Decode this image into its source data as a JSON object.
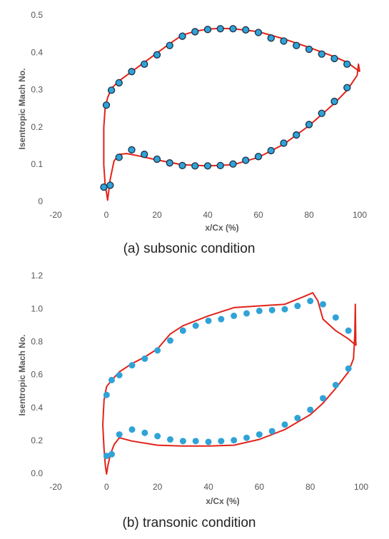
{
  "chart_data": [
    {
      "type": "scatter-line",
      "caption": "(a) subsonic condition",
      "xlabel": "x/Cx (%)",
      "ylabel": "Isentropic Mach No.",
      "xlim": [
        -20,
        100
      ],
      "xticks": [
        -20,
        0,
        20,
        40,
        60,
        80,
        100
      ],
      "ylim": [
        0,
        0.5
      ],
      "yticks": [
        0,
        0.1,
        0.2,
        0.3,
        0.4,
        0.5
      ],
      "series": [
        {
          "kind": "line",
          "color": "#e2231a",
          "x": [
            100,
            95,
            90,
            80,
            70,
            60,
            50,
            45,
            40,
            35,
            30,
            25,
            20,
            15,
            10,
            5,
            2,
            0.5,
            -0.5,
            -1,
            -1,
            -0.5,
            0.5,
            1.5,
            3,
            5,
            8,
            12,
            20,
            30,
            40,
            50,
            60,
            70,
            80,
            90,
            95,
            98,
            99,
            99.5,
            100
          ],
          "values": [
            0.35,
            0.375,
            0.39,
            0.415,
            0.438,
            0.457,
            0.465,
            0.466,
            0.464,
            0.458,
            0.448,
            0.425,
            0.4,
            0.375,
            0.35,
            0.325,
            0.305,
            0.28,
            0.25,
            0.2,
            0.1,
            0.05,
            0.005,
            0.06,
            0.11,
            0.128,
            0.13,
            0.125,
            0.113,
            0.1,
            0.097,
            0.1,
            0.12,
            0.155,
            0.205,
            0.265,
            0.3,
            0.33,
            0.34,
            0.37,
            0.35
          ]
        },
        {
          "kind": "scatter",
          "color": "#2fa3d8",
          "stroke": "#1b2f45",
          "x": [
            0,
            2,
            5,
            10,
            15,
            20,
            25,
            30,
            35,
            40,
            45,
            50,
            55,
            60,
            65,
            70,
            75,
            80,
            85,
            90,
            95,
            -1,
            1.5,
            5,
            10,
            15,
            20,
            25,
            30,
            35,
            40,
            45,
            50,
            55,
            60,
            65,
            70,
            75,
            80,
            85,
            90,
            95
          ],
          "values": [
            0.26,
            0.3,
            0.32,
            0.35,
            0.37,
            0.395,
            0.42,
            0.445,
            0.457,
            0.463,
            0.465,
            0.465,
            0.462,
            0.455,
            0.44,
            0.432,
            0.42,
            0.41,
            0.397,
            0.385,
            0.37,
            0.04,
            0.045,
            0.12,
            0.14,
            0.128,
            0.115,
            0.105,
            0.098,
            0.097,
            0.097,
            0.098,
            0.102,
            0.112,
            0.122,
            0.138,
            0.158,
            0.18,
            0.208,
            0.238,
            0.27,
            0.307
          ]
        }
      ]
    },
    {
      "type": "scatter-line",
      "caption": "(b) transonic condition",
      "xlabel": "x/Cx (%)",
      "ylabel": "Isentropic Mach No.",
      "xlim": [
        -20,
        100
      ],
      "xticks": [
        -20,
        0,
        20,
        40,
        60,
        80,
        100
      ],
      "ylim": [
        0,
        1.2
      ],
      "yticks": [
        {
          "value": 0,
          "label": "0.0"
        },
        0.2,
        0.4,
        0.6,
        0.8,
        {
          "value": 1,
          "label": "1.0"
        },
        1.2
      ],
      "series": [
        {
          "kind": "line",
          "color": "#e2231a",
          "x": [
            98,
            95,
            90,
            85,
            83,
            81,
            78,
            70,
            60,
            50,
            40,
            30,
            25,
            20,
            15,
            10,
            5,
            2,
            0,
            -1,
            -1.5,
            -1,
            -0.5,
            0,
            0.5,
            1.5,
            3,
            5,
            10,
            20,
            30,
            40,
            50,
            60,
            70,
            80,
            85,
            90,
            95,
            97,
            97.5,
            97.7,
            97.9,
            98
          ],
          "values": [
            0.78,
            0.82,
            0.87,
            0.94,
            1.05,
            1.1,
            1.08,
            1.03,
            1.02,
            1.01,
            0.96,
            0.9,
            0.85,
            0.76,
            0.71,
            0.67,
            0.62,
            0.57,
            0.53,
            0.45,
            0.3,
            0.15,
            0.05,
            0,
            0.05,
            0.12,
            0.18,
            0.22,
            0.2,
            0.175,
            0.17,
            0.17,
            0.175,
            0.21,
            0.27,
            0.36,
            0.43,
            0.52,
            0.62,
            0.7,
            0.85,
            1.03,
            0.8,
            0.78
          ]
        },
        {
          "kind": "scatter",
          "color": "#2fa3d8",
          "x": [
            0,
            2,
            5,
            10,
            15,
            20,
            25,
            30,
            35,
            40,
            45,
            50,
            55,
            60,
            65,
            70,
            75,
            80,
            85,
            90,
            95,
            0,
            2,
            5,
            10,
            15,
            20,
            25,
            30,
            35,
            40,
            45,
            50,
            55,
            60,
            65,
            70,
            75,
            80,
            85,
            90,
            95
          ],
          "values": [
            0.48,
            0.57,
            0.6,
            0.66,
            0.7,
            0.75,
            0.81,
            0.87,
            0.9,
            0.93,
            0.94,
            0.96,
            0.975,
            0.99,
            0.995,
            1.0,
            1.02,
            1.05,
            1.03,
            0.95,
            0.87,
            0.11,
            0.12,
            0.24,
            0.27,
            0.25,
            0.23,
            0.21,
            0.2,
            0.2,
            0.195,
            0.2,
            0.205,
            0.22,
            0.24,
            0.26,
            0.3,
            0.34,
            0.39,
            0.46,
            0.54,
            0.64
          ]
        }
      ]
    }
  ]
}
